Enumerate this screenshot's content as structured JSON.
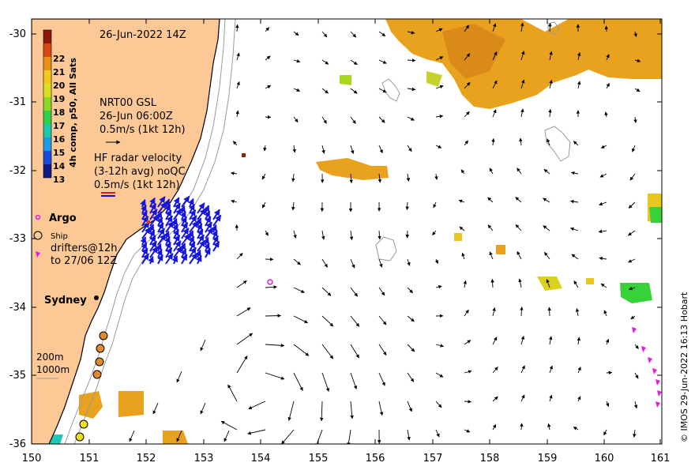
{
  "map": {
    "date_label": "26-Jun-2022 14Z",
    "credit": "© IMOS 29-Jun-2022 16:13 Hobart",
    "x_ticks": [
      "150",
      "151",
      "152",
      "153",
      "154",
      "155",
      "156",
      "157",
      "158",
      "159",
      "160",
      "161"
    ],
    "y_ticks": [
      "-30",
      "-31",
      "-32",
      "-33",
      "-34",
      "-35",
      "-36"
    ],
    "lon_range": [
      150,
      161
    ],
    "lat_range": [
      -36,
      -29.85
    ],
    "city": "Sydney",
    "colors": {
      "land": "#fcc896",
      "sst_warm": "#e8a21e",
      "hf_radar": "#1414dc",
      "argo": "#e619e6"
    }
  },
  "colorbar": {
    "title": "4h comp, p50, All Sats",
    "ticks": [
      "22",
      "21",
      "20",
      "19",
      "18",
      "17",
      "16",
      "15",
      "14",
      "13"
    ]
  },
  "legend": {
    "model_title": "NRT00 GSL",
    "model_time": "26-Jun 06:00Z",
    "model_scale": "0.5m/s (1kt 12h)",
    "hf_title": "HF radar velocity",
    "hf_sub": "(3-12h avg) noQC",
    "hf_scale": "0.5m/s (1kt 12h)",
    "argo": "Argo",
    "ship": "Ship",
    "drifters_1": "drifters@12h",
    "drifters_2": "to 27/06 12Z",
    "depth_1": "200m",
    "depth_2": "1000m"
  }
}
